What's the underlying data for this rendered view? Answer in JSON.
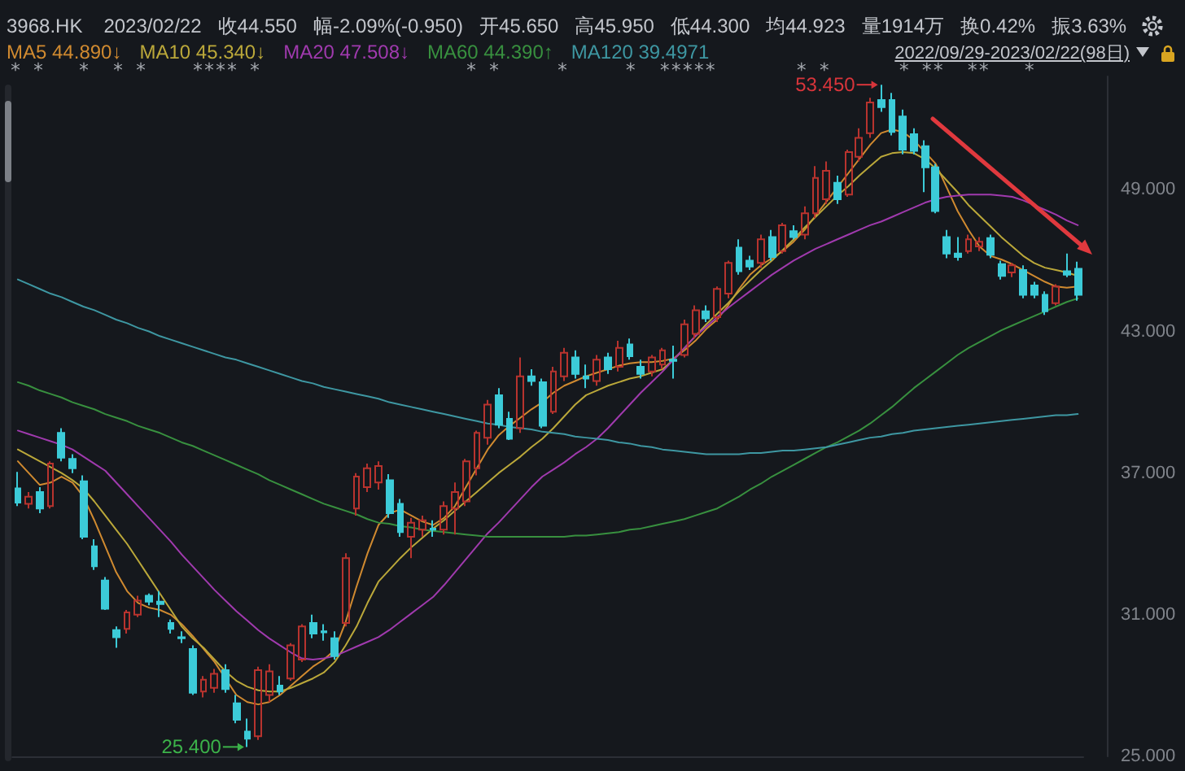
{
  "chart_data": {
    "type": "candlestick",
    "title": "3968.HK",
    "subtitle": "2023/02/22",
    "categories": [
      null,
      null,
      null,
      null,
      null,
      null,
      null,
      null,
      null,
      null,
      null,
      null,
      null,
      null,
      null,
      null,
      null,
      null,
      null,
      null,
      null,
      null,
      null,
      null,
      null,
      null,
      null,
      null,
      null,
      null,
      null,
      null,
      null,
      null,
      null,
      null,
      null,
      null,
      null,
      null,
      null,
      null,
      null,
      null,
      null,
      null,
      null,
      null,
      null,
      null,
      null,
      null,
      null,
      null,
      null,
      null,
      null,
      null,
      null,
      null,
      null,
      null,
      null,
      null,
      null,
      null,
      null,
      null,
      null,
      null,
      null,
      null,
      null,
      null,
      null,
      null,
      null,
      null,
      null,
      null,
      null,
      null,
      null,
      null,
      null,
      null,
      null,
      null,
      null,
      null,
      null,
      null,
      null,
      null,
      null,
      null,
      null,
      null
    ],
    "ohlc": [
      [
        36.35,
        37.05,
        35.6,
        35.75
      ],
      [
        35.7,
        36.2,
        35.5,
        36.0
      ],
      [
        36.2,
        36.4,
        35.3,
        35.5
      ],
      [
        35.6,
        37.5,
        35.5,
        37.4
      ],
      [
        38.7,
        38.9,
        37.5,
        37.65
      ],
      [
        37.6,
        37.8,
        37.0,
        37.2
      ],
      [
        36.65,
        36.9,
        34.2,
        34.3
      ],
      [
        33.9,
        34.2,
        32.9,
        33.05
      ],
      [
        32.45,
        32.6,
        31.2,
        31.25
      ],
      [
        30.35,
        30.5,
        29.6,
        30.05
      ],
      [
        30.4,
        31.2,
        30.2,
        31.1
      ],
      [
        31.0,
        31.8,
        30.9,
        31.6
      ],
      [
        31.8,
        31.9,
        31.4,
        31.55
      ],
      [
        31.55,
        32.0,
        30.9,
        31.45
      ],
      [
        30.65,
        30.8,
        30.2,
        30.4
      ],
      [
        30.05,
        30.3,
        29.8,
        30.0
      ],
      [
        29.55,
        29.7,
        27.6,
        27.7
      ],
      [
        27.75,
        28.4,
        27.5,
        28.25
      ],
      [
        27.9,
        28.7,
        27.7,
        28.5
      ],
      [
        28.65,
        28.9,
        27.7,
        27.85
      ],
      [
        27.25,
        27.6,
        26.4,
        26.55
      ],
      [
        26.05,
        26.6,
        25.4,
        25.75
      ],
      [
        25.85,
        28.8,
        25.7,
        28.65
      ],
      [
        27.6,
        28.9,
        27.3,
        28.6
      ],
      [
        28.0,
        28.4,
        27.6,
        27.75
      ],
      [
        28.3,
        29.8,
        28.2,
        29.7
      ],
      [
        29.1,
        30.6,
        29.0,
        30.5
      ],
      [
        30.65,
        31.0,
        30.0,
        30.2
      ],
      [
        30.3,
        30.6,
        29.9,
        30.25
      ],
      [
        30.0,
        30.3,
        29.1,
        29.25
      ],
      [
        30.65,
        33.6,
        30.5,
        33.4
      ],
      [
        35.5,
        37.0,
        35.2,
        36.85
      ],
      [
        36.4,
        37.4,
        36.2,
        37.2
      ],
      [
        36.6,
        37.5,
        36.3,
        37.3
      ],
      [
        36.7,
        36.95,
        35.1,
        35.3
      ],
      [
        35.7,
        35.9,
        34.3,
        34.5
      ],
      [
        34.3,
        35.1,
        33.4,
        34.9
      ],
      [
        34.6,
        35.2,
        34.3,
        35.0
      ],
      [
        34.65,
        35.0,
        34.3,
        34.6
      ],
      [
        34.6,
        35.8,
        34.4,
        35.6
      ],
      [
        35.5,
        36.6,
        34.4,
        36.2
      ],
      [
        35.8,
        37.6,
        35.6,
        37.5
      ],
      [
        37.2,
        38.8,
        36.9,
        38.7
      ],
      [
        38.5,
        40.1,
        38.2,
        39.9
      ],
      [
        40.3,
        40.6,
        38.9,
        39.05
      ],
      [
        39.3,
        39.6,
        38.4,
        38.45
      ],
      [
        38.9,
        41.9,
        38.7,
        41.1
      ],
      [
        41.1,
        41.4,
        40.7,
        40.9
      ],
      [
        40.85,
        41.0,
        38.9,
        39.0
      ],
      [
        39.6,
        41.5,
        39.5,
        41.3
      ],
      [
        41.1,
        42.3,
        40.9,
        42.1
      ],
      [
        41.9,
        42.2,
        41.0,
        41.2
      ],
      [
        41.1,
        41.6,
        40.6,
        41.0
      ],
      [
        40.9,
        42.0,
        40.7,
        41.8
      ],
      [
        41.9,
        42.1,
        41.2,
        41.4
      ],
      [
        41.5,
        42.6,
        41.3,
        42.3
      ],
      [
        42.45,
        42.7,
        41.8,
        41.95
      ],
      [
        41.5,
        41.8,
        41.0,
        41.2
      ],
      [
        41.3,
        42.0,
        41.1,
        41.9
      ],
      [
        41.6,
        42.3,
        41.4,
        42.2
      ],
      [
        41.8,
        42.4,
        41.0,
        41.75
      ],
      [
        42.0,
        43.5,
        41.9,
        43.3
      ],
      [
        42.9,
        44.1,
        42.7,
        43.9
      ],
      [
        43.85,
        44.1,
        43.4,
        43.55
      ],
      [
        43.6,
        44.9,
        43.4,
        44.8
      ],
      [
        44.6,
        46.0,
        44.4,
        45.9
      ],
      [
        46.55,
        46.9,
        45.4,
        45.55
      ],
      [
        46.0,
        46.2,
        45.6,
        45.75
      ],
      [
        45.9,
        47.1,
        45.7,
        46.9
      ],
      [
        47.0,
        47.3,
        46.0,
        46.15
      ],
      [
        46.4,
        47.6,
        46.3,
        47.5
      ],
      [
        47.25,
        47.5,
        46.9,
        47.0
      ],
      [
        47.1,
        48.3,
        46.9,
        48.0
      ],
      [
        48.0,
        50.0,
        47.8,
        49.5
      ],
      [
        48.6,
        50.2,
        48.4,
        49.8
      ],
      [
        49.3,
        49.6,
        48.4,
        48.6
      ],
      [
        48.8,
        50.7,
        48.7,
        50.6
      ],
      [
        50.4,
        51.6,
        50.2,
        51.2
      ],
      [
        51.4,
        52.9,
        51.2,
        52.7
      ],
      [
        52.8,
        53.45,
        52.3,
        52.5
      ],
      [
        52.8,
        53.1,
        51.3,
        51.45
      ],
      [
        52.1,
        52.4,
        50.5,
        50.7
      ],
      [
        51.35,
        51.6,
        50.5,
        50.65
      ],
      [
        50.85,
        51.1,
        48.9,
        49.95
      ],
      [
        49.95,
        50.1,
        48.0,
        48.1
      ],
      [
        47.0,
        47.3,
        46.1,
        46.3
      ],
      [
        46.3,
        47.0,
        46.0,
        46.15
      ],
      [
        46.4,
        47.1,
        46.3,
        46.9
      ],
      [
        46.6,
        47.0,
        46.4,
        46.8
      ],
      [
        46.95,
        47.1,
        46.1,
        46.25
      ],
      [
        45.85,
        46.0,
        45.2,
        45.35
      ],
      [
        45.5,
        45.9,
        45.3,
        45.8
      ],
      [
        45.6,
        45.8,
        44.4,
        44.55
      ],
      [
        44.95,
        45.1,
        44.4,
        44.55
      ],
      [
        44.55,
        44.7,
        43.7,
        43.85
      ],
      [
        44.2,
        45.0,
        44.1,
        44.9
      ],
      [
        45.55,
        46.3,
        45.3,
        45.4
      ],
      [
        45.65,
        45.95,
        44.3,
        44.55
      ]
    ],
    "colors": [
      "#3ccbd8",
      "#b8332e",
      "#3ccbd8",
      "#b8332e",
      "#3ccbd8",
      "#3ccbd8",
      "#3ccbd8",
      "#3ccbd8",
      "#3ccbd8",
      "#3ccbd8",
      "#b8332e",
      "#b8332e",
      "#3ccbd8",
      "#3ccbd8",
      "#3ccbd8",
      "#3ccbd8",
      "#3ccbd8",
      "#b8332e",
      "#b8332e",
      "#3ccbd8",
      "#3ccbd8",
      "#3ccbd8",
      "#b8332e",
      "#b8332e",
      "#3ccbd8",
      "#b8332e",
      "#b8332e",
      "#3ccbd8",
      "#3ccbd8",
      "#3ccbd8",
      "#b8332e",
      "#b8332e",
      "#b8332e",
      "#b8332e",
      "#3ccbd8",
      "#3ccbd8",
      "#b8332e",
      "#b8332e",
      "#3ccbd8",
      "#b8332e",
      "#b8332e",
      "#b8332e",
      "#b8332e",
      "#b8332e",
      "#3ccbd8",
      "#3ccbd8",
      "#b8332e",
      "#3ccbd8",
      "#3ccbd8",
      "#b8332e",
      "#b8332e",
      "#3ccbd8",
      "#3ccbd8",
      "#b8332e",
      "#3ccbd8",
      "#b8332e",
      "#3ccbd8",
      "#3ccbd8",
      "#b8332e",
      "#b8332e",
      "#3ccbd8",
      "#b8332e",
      "#b8332e",
      "#3ccbd8",
      "#b8332e",
      "#b8332e",
      "#3ccbd8",
      "#3ccbd8",
      "#b8332e",
      "#3ccbd8",
      "#b8332e",
      "#3ccbd8",
      "#b8332e",
      "#b8332e",
      "#b8332e",
      "#3ccbd8",
      "#b8332e",
      "#b8332e",
      "#b8332e",
      "#3ccbd8",
      "#3ccbd8",
      "#3ccbd8",
      "#3ccbd8",
      "#3ccbd8",
      "#3ccbd8",
      "#3ccbd8",
      "#3ccbd8",
      "#b8332e",
      "#b8332e",
      "#3ccbd8",
      "#3ccbd8",
      "#b8332e",
      "#3ccbd8",
      "#3ccbd8",
      "#3ccbd8",
      "#b8332e",
      "#3ccbd8",
      "#3ccbd8"
    ],
    "series": [
      {
        "type": "line",
        "name": "MA5 44.890↓",
        "color": "#d08a30",
        "values": [
          37.5,
          37.0,
          36.5,
          36.6,
          36.85,
          36.6,
          36.0,
          35.0,
          33.9,
          32.8,
          32.0,
          31.5,
          31.3,
          31.2,
          31.0,
          30.6,
          30.1,
          29.55,
          29.0,
          28.3,
          27.6,
          27.3,
          27.2,
          27.3,
          27.6,
          28.0,
          28.4,
          28.8,
          29.1,
          29.5,
          30.7,
          32.2,
          33.6,
          34.8,
          35.3,
          35.45,
          35.2,
          34.95,
          34.8,
          35.1,
          35.6,
          36.4,
          37.2,
          38.0,
          38.6,
          39.0,
          39.35,
          39.7,
          40.0,
          40.4,
          40.7,
          40.9,
          41.1,
          41.25,
          41.4,
          41.55,
          41.65,
          41.7,
          41.7,
          41.75,
          41.85,
          42.2,
          42.6,
          43.1,
          43.5,
          44.1,
          44.8,
          45.4,
          45.8,
          46.1,
          46.4,
          46.8,
          47.3,
          47.9,
          48.5,
          49.1,
          49.7,
          50.3,
          50.9,
          51.4,
          51.55,
          51.45,
          51.1,
          50.6,
          50.1,
          49.1,
          48.1,
          47.3,
          46.6,
          46.2,
          46.05,
          45.85,
          45.6,
          45.35,
          45.1,
          44.9,
          44.85,
          44.9
        ]
      },
      {
        "type": "line",
        "name": "MA10 45.340↓",
        "color": "#bba83a",
        "values": [
          38.0,
          37.75,
          37.5,
          37.25,
          37.0,
          36.7,
          36.35,
          35.8,
          35.2,
          34.6,
          34.0,
          33.3,
          32.6,
          31.9,
          31.2,
          30.5,
          30.0,
          29.6,
          29.1,
          28.6,
          28.2,
          27.95,
          27.8,
          27.75,
          27.75,
          27.9,
          28.1,
          28.3,
          28.55,
          29.0,
          29.7,
          30.5,
          31.5,
          32.4,
          32.9,
          33.4,
          33.85,
          34.25,
          34.65,
          35.0,
          35.4,
          35.8,
          36.2,
          36.6,
          37.0,
          37.35,
          37.7,
          38.1,
          38.45,
          38.9,
          39.4,
          39.9,
          40.3,
          40.5,
          40.7,
          40.85,
          41.0,
          41.1,
          41.25,
          41.4,
          41.8,
          42.3,
          42.8,
          43.3,
          43.75,
          44.2,
          44.7,
          45.15,
          45.6,
          46.0,
          46.45,
          46.9,
          47.4,
          47.85,
          48.3,
          48.75,
          49.15,
          49.6,
          50.0,
          50.4,
          50.55,
          50.6,
          50.55,
          50.3,
          49.9,
          49.4,
          48.9,
          48.35,
          47.9,
          47.45,
          47.0,
          46.6,
          46.2,
          45.9,
          45.7,
          45.6,
          45.5,
          45.35
        ]
      },
      {
        "type": "line",
        "name": "MA20 47.508↓",
        "color": "#a03aae",
        "values": [
          38.8,
          38.65,
          38.5,
          38.35,
          38.2,
          38.0,
          37.7,
          37.4,
          37.1,
          36.6,
          36.1,
          35.6,
          35.1,
          34.6,
          34.1,
          33.55,
          33.05,
          32.55,
          32.05,
          31.6,
          31.15,
          30.75,
          30.35,
          30.0,
          29.7,
          29.4,
          29.15,
          29.1,
          29.15,
          29.25,
          29.45,
          29.65,
          29.85,
          30.05,
          30.35,
          30.7,
          31.05,
          31.4,
          31.75,
          32.25,
          32.8,
          33.35,
          33.9,
          34.45,
          34.9,
          35.4,
          35.9,
          36.4,
          36.85,
          37.15,
          37.45,
          37.8,
          38.1,
          38.45,
          38.9,
          39.4,
          39.9,
          40.4,
          40.85,
          41.3,
          41.8,
          42.3,
          42.8,
          43.2,
          43.6,
          44.0,
          44.35,
          44.7,
          45.05,
          45.4,
          45.7,
          46.0,
          46.25,
          46.5,
          46.7,
          46.9,
          47.1,
          47.3,
          47.5,
          47.65,
          47.85,
          48.05,
          48.25,
          48.45,
          48.6,
          48.7,
          48.75,
          48.8,
          48.8,
          48.8,
          48.75,
          48.7,
          48.55,
          48.35,
          48.15,
          47.95,
          47.7,
          47.5
        ]
      },
      {
        "type": "line",
        "name": "MA60 44.390↑",
        "color": "#38903f",
        "values": [
          40.85,
          40.7,
          40.5,
          40.35,
          40.2,
          40.0,
          39.85,
          39.7,
          39.5,
          39.35,
          39.2,
          39.0,
          38.85,
          38.7,
          38.5,
          38.3,
          38.15,
          37.95,
          37.75,
          37.55,
          37.35,
          37.15,
          36.95,
          36.7,
          36.5,
          36.3,
          36.1,
          35.9,
          35.7,
          35.55,
          35.4,
          35.25,
          35.05,
          34.9,
          34.85,
          34.75,
          34.7,
          34.6,
          34.55,
          34.5,
          34.45,
          34.4,
          34.35,
          34.3,
          34.3,
          34.3,
          34.3,
          34.3,
          34.3,
          34.3,
          34.3,
          34.35,
          34.35,
          34.4,
          34.45,
          34.5,
          34.6,
          34.65,
          34.75,
          34.85,
          34.95,
          35.05,
          35.2,
          35.35,
          35.5,
          35.75,
          36.0,
          36.3,
          36.55,
          36.85,
          37.1,
          37.35,
          37.6,
          37.85,
          38.1,
          38.3,
          38.55,
          38.8,
          39.1,
          39.45,
          39.8,
          40.2,
          40.6,
          40.95,
          41.3,
          41.65,
          42.0,
          42.3,
          42.55,
          42.8,
          43.05,
          43.25,
          43.45,
          43.65,
          43.85,
          44.05,
          44.25,
          44.4
        ]
      },
      {
        "type": "line",
        "name": "MA120 39.4971",
        "color": "#3e97a2",
        "values": [
          45.2,
          45.0,
          44.8,
          44.6,
          44.45,
          44.25,
          44.05,
          43.9,
          43.7,
          43.5,
          43.35,
          43.15,
          43.0,
          42.8,
          42.65,
          42.5,
          42.35,
          42.2,
          42.05,
          41.9,
          41.8,
          41.65,
          41.5,
          41.35,
          41.2,
          41.05,
          40.9,
          40.8,
          40.65,
          40.55,
          40.45,
          40.35,
          40.25,
          40.15,
          40.0,
          39.9,
          39.8,
          39.7,
          39.6,
          39.5,
          39.4,
          39.3,
          39.2,
          39.1,
          39.05,
          38.95,
          38.9,
          38.85,
          38.75,
          38.7,
          38.65,
          38.55,
          38.5,
          38.45,
          38.4,
          38.3,
          38.25,
          38.15,
          38.1,
          38.0,
          37.95,
          37.9,
          37.85,
          37.8,
          37.8,
          37.8,
          37.8,
          37.85,
          37.85,
          37.9,
          37.95,
          37.95,
          38.0,
          38.05,
          38.1,
          38.2,
          38.3,
          38.4,
          38.5,
          38.55,
          38.65,
          38.7,
          38.8,
          38.85,
          38.9,
          38.95,
          39.0,
          39.05,
          39.1,
          39.15,
          39.2,
          39.25,
          39.3,
          39.35,
          39.4,
          39.45,
          39.45,
          39.5
        ]
      }
    ],
    "ylim": [
      25,
      53.8
    ],
    "yticks": [
      {
        "value": 25,
        "label": "25.000"
      },
      {
        "value": 31,
        "label": "31.000"
      },
      {
        "value": 37,
        "label": "37.000"
      },
      {
        "value": 43,
        "label": "43.000"
      },
      {
        "value": 49,
        "label": "49.000"
      }
    ],
    "tick_labels": "y",
    "legend": "top left",
    "marker": "none",
    "line_style": "solid",
    "annotations": [
      "收44.550",
      "幅-2.09%(-0.950)",
      "开45.650",
      "高45.950",
      "低44.300",
      "均44.923",
      "量1914万",
      "换0.42%",
      "振3.63%",
      "2022/09/29-2023/02/22(98日)",
      "* *   *  * *    **** *                  * *     *     *  *****       * *      * **  **   *",
      "53.450",
      "25.400"
    ]
  }
}
